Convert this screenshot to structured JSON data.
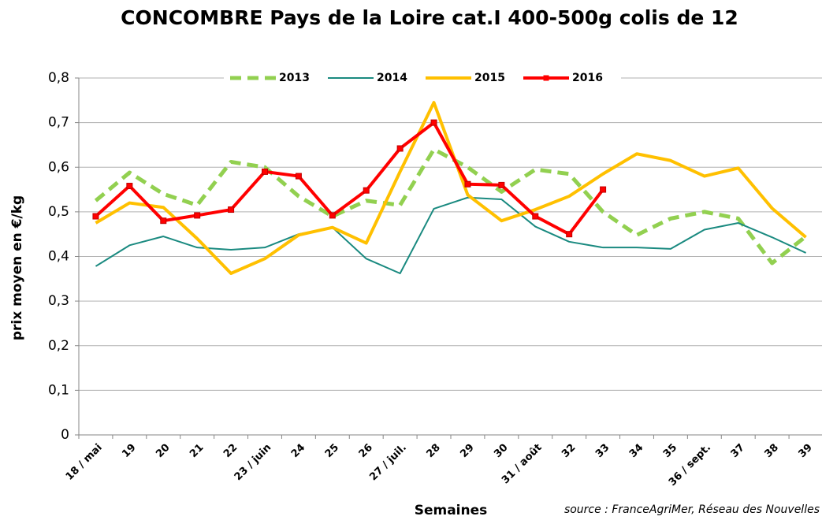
{
  "chart_data": {
    "type": "line",
    "title": "CONCOMBRE Pays de la Loire cat.I 400-500g colis de 12",
    "y_label": "prix moyen en €/kg",
    "x_label": "Semaines",
    "source": "source : FranceAgriMer, Réseau des Nouvelles",
    "categories": [
      "18 / mai",
      "19",
      "20",
      "21",
      "22",
      "23 / juin",
      "24",
      "25",
      "26",
      "27 / juil.",
      "28",
      "29",
      "30",
      "31 / août",
      "32",
      "33",
      "34",
      "35",
      "36 / sept.",
      "37",
      "38",
      "39"
    ],
    "ylim": [
      0,
      0.8
    ],
    "yticks": [
      0,
      {
        "value": 0.1,
        "label": "0,1"
      },
      {
        "value": 0.2,
        "label": "0,2"
      },
      {
        "value": 0.3,
        "label": "0,3"
      },
      {
        "value": 0.4,
        "label": "0,4"
      },
      {
        "value": 0.5,
        "label": "0,5"
      },
      {
        "value": 0.6,
        "label": "0,6"
      },
      {
        "value": 0.7,
        "label": "0,7"
      },
      {
        "value": 0.8,
        "label": "0,8"
      }
    ],
    "grid": true,
    "legend": "top",
    "series": [
      {
        "name": "2013",
        "color": "#92d050",
        "line_width": 5,
        "dash": true,
        "values": [
          0.525,
          0.588,
          0.54,
          0.515,
          0.612,
          0.6,
          0.535,
          0.49,
          0.525,
          0.515,
          0.64,
          0.6,
          0.545,
          0.595,
          0.585,
          0.5,
          0.448,
          0.485,
          0.5,
          0.485,
          0.385,
          0.445
        ]
      },
      {
        "name": "2014",
        "color": "#1a8a80",
        "line_width": 2,
        "values": [
          0.378,
          0.425,
          0.445,
          0.42,
          0.415,
          0.42,
          0.45,
          0.465,
          0.395,
          0.362,
          0.507,
          0.532,
          0.528,
          0.467,
          0.433,
          0.42,
          0.42,
          0.417,
          0.46,
          0.475,
          0.443,
          0.408
        ]
      },
      {
        "name": "2015",
        "color": "#ffc000",
        "line_width": 4,
        "values": [
          0.475,
          0.52,
          0.51,
          0.44,
          0.362,
          0.395,
          0.448,
          0.465,
          0.43,
          0.59,
          0.745,
          0.538,
          0.48,
          0.505,
          0.535,
          0.585,
          0.63,
          0.615,
          0.58,
          0.598,
          0.508,
          0.443
        ]
      },
      {
        "name": "2016",
        "color": "#ff0000",
        "line_width": 4,
        "marker": "square",
        "values": [
          0.49,
          0.558,
          0.48,
          0.492,
          0.505,
          0.59,
          0.58,
          0.492,
          0.548,
          0.642,
          0.7,
          0.562,
          0.56,
          0.49,
          0.45,
          0.55,
          null,
          null,
          null,
          null,
          null,
          null
        ]
      }
    ]
  }
}
